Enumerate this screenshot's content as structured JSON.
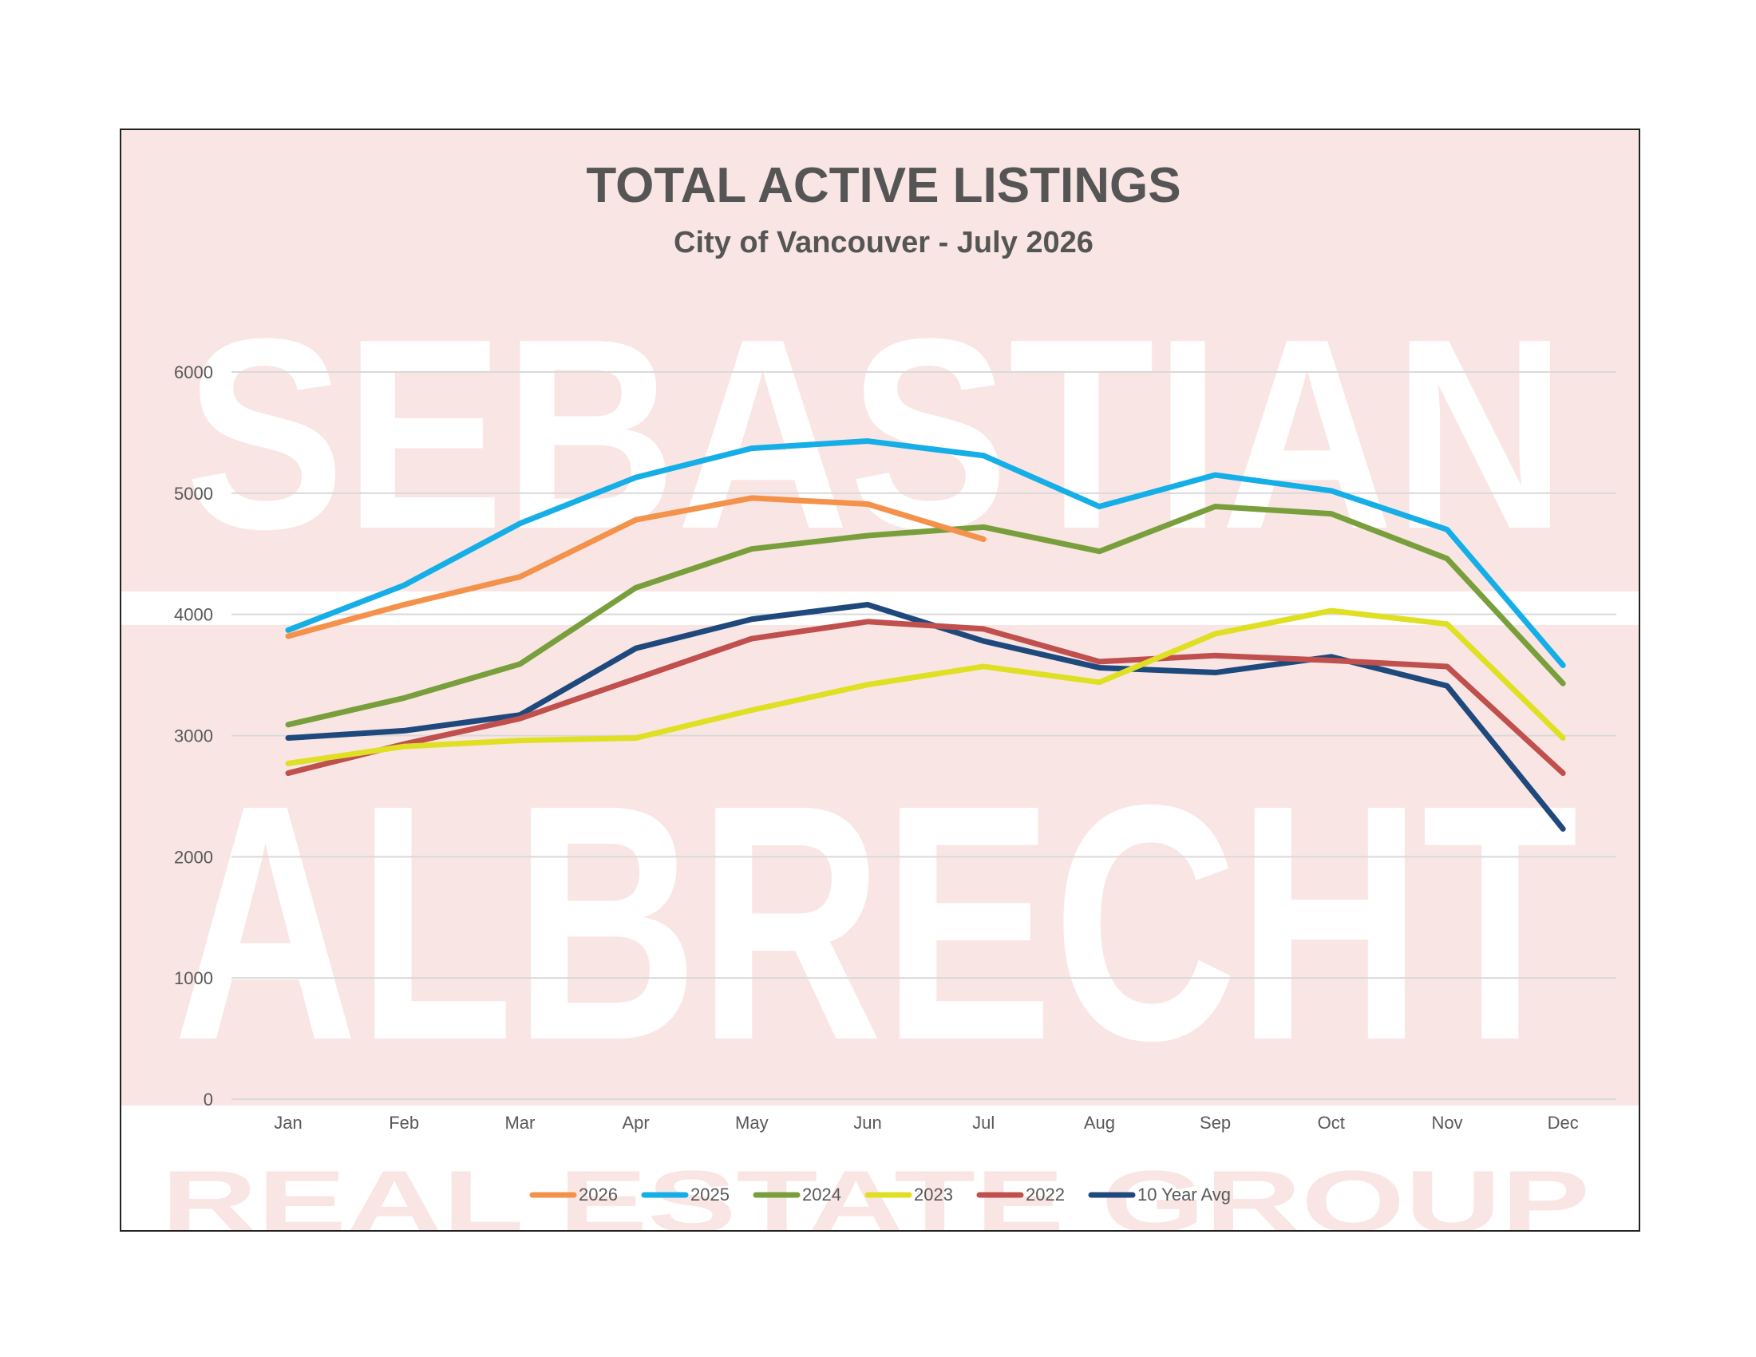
{
  "watermark": {
    "line1": "SEBASTIAN",
    "line2": "ALBRECHT",
    "line3": "REAL ESTATE GROUP",
    "band_color": "#f9e6e4",
    "text_color": "#ffffff"
  },
  "chart_data": {
    "type": "line",
    "title": "TOTAL ACTIVE LISTINGS",
    "subtitle": "City of Vancouver - July 2026",
    "xlabel": "",
    "ylabel": "",
    "categories": [
      "Jan",
      "Feb",
      "Mar",
      "Apr",
      "May",
      "Jun",
      "Jul",
      "Aug",
      "Sep",
      "Oct",
      "Nov",
      "Dec"
    ],
    "ylim": [
      0,
      6000
    ],
    "yticks": [
      0,
      1000,
      2000,
      3000,
      4000,
      5000,
      6000
    ],
    "grid": true,
    "legend_position": "bottom",
    "series": [
      {
        "name": "2026",
        "color": "#f4914b",
        "values": [
          3820,
          4080,
          4310,
          4780,
          4960,
          4910,
          4620,
          null,
          null,
          null,
          null,
          null
        ]
      },
      {
        "name": "2025",
        "color": "#15aee7",
        "values": [
          3870,
          4240,
          4750,
          5130,
          5370,
          5430,
          5310,
          4890,
          5150,
          5020,
          4700,
          3580
        ]
      },
      {
        "name": "2024",
        "color": "#789f3c",
        "values": [
          3090,
          3310,
          3590,
          4220,
          4540,
          4650,
          4720,
          4520,
          4890,
          4830,
          4460,
          3430
        ]
      },
      {
        "name": "2023",
        "color": "#dfe024",
        "values": [
          2770,
          2910,
          2960,
          2980,
          3210,
          3420,
          3570,
          3440,
          3840,
          4030,
          3920,
          2980
        ]
      },
      {
        "name": "2022",
        "color": "#c0504d",
        "values": [
          2690,
          2930,
          3140,
          3470,
          3800,
          3940,
          3880,
          3610,
          3660,
          3620,
          3570,
          2690
        ]
      },
      {
        "name": "10 Year Avg",
        "color": "#1f497d",
        "values": [
          2980,
          3040,
          3170,
          3720,
          3960,
          4080,
          3780,
          3560,
          3520,
          3650,
          3410,
          2230
        ]
      }
    ]
  }
}
